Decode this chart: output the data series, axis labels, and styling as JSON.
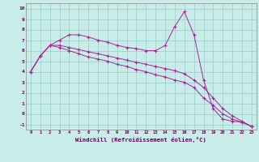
{
  "xlabel": "Windchill (Refroidissement éolien,°C)",
  "bg_color": "#c8ece8",
  "line_color": "#aa2299",
  "grid_color": "#99cccc",
  "xlim": [
    -0.5,
    23.5
  ],
  "ylim": [
    -1.5,
    10.5
  ],
  "xticks": [
    0,
    1,
    2,
    3,
    4,
    5,
    6,
    7,
    8,
    9,
    10,
    11,
    12,
    13,
    14,
    15,
    16,
    17,
    18,
    19,
    20,
    21,
    22,
    23
  ],
  "yticks": [
    -1,
    0,
    1,
    2,
    3,
    4,
    5,
    6,
    7,
    8,
    9,
    10
  ],
  "line1_x": [
    0,
    1,
    2,
    3,
    4,
    5,
    6,
    7,
    8,
    9,
    10,
    11,
    12,
    13,
    14,
    15,
    16,
    17,
    18,
    19,
    20,
    21,
    22,
    23
  ],
  "line1_y": [
    4.0,
    5.5,
    6.5,
    7.0,
    7.5,
    7.5,
    7.3,
    7.0,
    6.8,
    6.5,
    6.3,
    6.2,
    6.0,
    6.0,
    6.5,
    8.3,
    9.7,
    7.5,
    3.2,
    0.5,
    -0.5,
    -0.7,
    -0.8,
    -1.2
  ],
  "line2_x": [
    0,
    1,
    2,
    3,
    4,
    5,
    6,
    7,
    8,
    9,
    10,
    11,
    12,
    13,
    14,
    15,
    16,
    17,
    18,
    19,
    20,
    21,
    22,
    23
  ],
  "line2_y": [
    4.0,
    5.5,
    6.5,
    6.5,
    6.3,
    6.1,
    5.9,
    5.7,
    5.5,
    5.3,
    5.1,
    4.9,
    4.7,
    4.5,
    4.3,
    4.1,
    3.8,
    3.2,
    2.5,
    1.5,
    0.5,
    -0.2,
    -0.7,
    -1.2
  ],
  "line3_x": [
    0,
    1,
    2,
    3,
    4,
    5,
    6,
    7,
    8,
    9,
    10,
    11,
    12,
    13,
    14,
    15,
    16,
    17,
    18,
    19,
    20,
    21,
    22,
    23
  ],
  "line3_y": [
    4.0,
    5.5,
    6.5,
    6.3,
    6.0,
    5.7,
    5.4,
    5.2,
    5.0,
    4.7,
    4.5,
    4.2,
    4.0,
    3.7,
    3.5,
    3.2,
    3.0,
    2.5,
    1.5,
    0.8,
    0.0,
    -0.5,
    -0.8,
    -1.2
  ]
}
